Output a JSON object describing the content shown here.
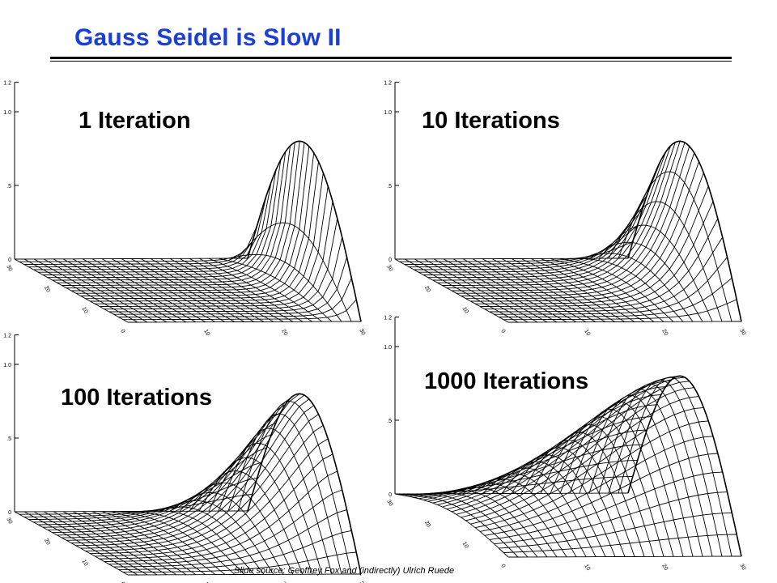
{
  "slide": {
    "title": "Gauss Seidel is Slow II",
    "credit": "Slide source: Geoffrey Fox and (indirectly) Ulrich Ruede"
  },
  "plots": [
    {
      "label": "1 Iteration",
      "iterations": 1
    },
    {
      "label": "10 Iterations",
      "iterations": 10
    },
    {
      "label": "100 Iterations",
      "iterations": 100
    },
    {
      "label": "1000 Iterations",
      "iterations": 1000
    }
  ],
  "axes": {
    "z_ticks": [
      "1.2",
      "1.0",
      ".5",
      "0"
    ],
    "left_ticks": [
      "30",
      "20",
      "10",
      "0"
    ],
    "right_ticks": [
      "10",
      "20",
      "30"
    ]
  }
}
